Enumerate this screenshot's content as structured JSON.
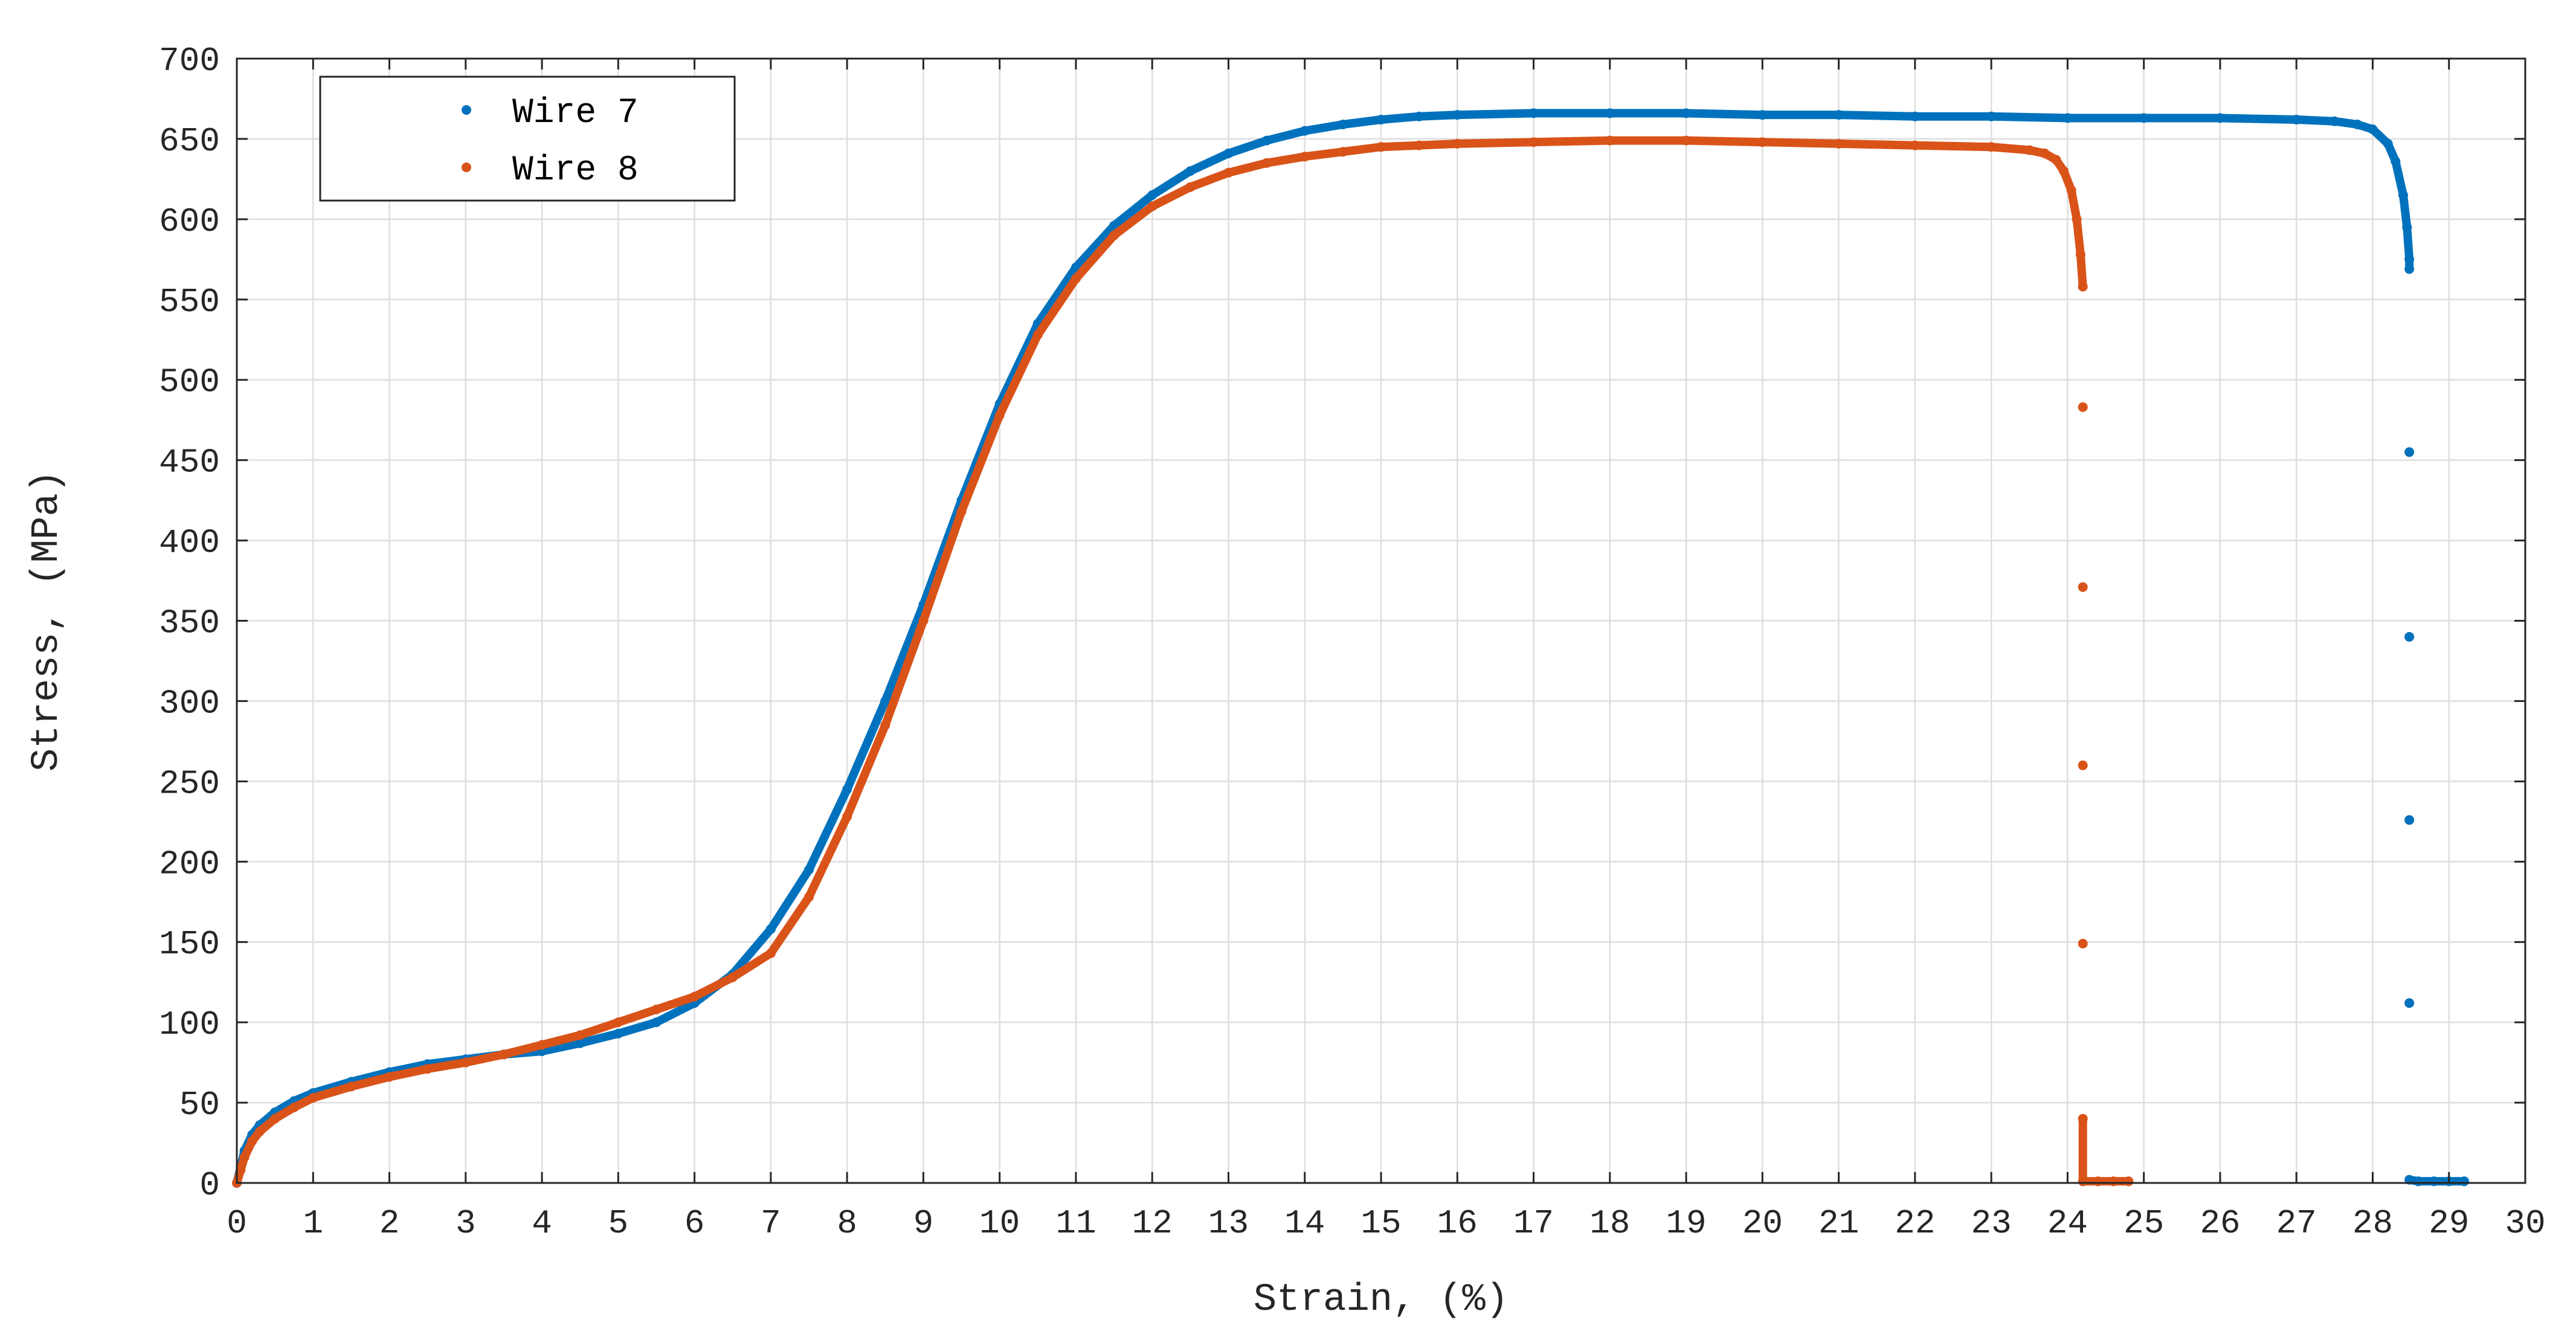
{
  "chart_data": {
    "type": "scatter",
    "title": "",
    "xlabel": "Strain, (%)",
    "ylabel": "Stress, (MPa)",
    "xlim": [
      0,
      30
    ],
    "ylim": [
      0,
      700
    ],
    "xticks": [
      0,
      1,
      2,
      3,
      4,
      5,
      6,
      7,
      8,
      9,
      10,
      11,
      12,
      13,
      14,
      15,
      16,
      17,
      18,
      19,
      20,
      21,
      22,
      23,
      24,
      25,
      26,
      27,
      28,
      29,
      30
    ],
    "yticks": [
      0,
      50,
      100,
      150,
      200,
      250,
      300,
      350,
      400,
      450,
      500,
      550,
      600,
      650,
      700
    ],
    "grid": true,
    "legend_position": "top-left",
    "series": [
      {
        "name": "Wire 7",
        "color": "#0072BD",
        "x": [
          0,
          0.05,
          0.1,
          0.2,
          0.3,
          0.5,
          0.75,
          1,
          1.5,
          2,
          2.5,
          3,
          3.5,
          4,
          4.5,
          5,
          5.5,
          6,
          6.5,
          7,
          7.5,
          8,
          8.5,
          9,
          9.5,
          10,
          10.5,
          11,
          11.5,
          12,
          12.5,
          13,
          13.5,
          14,
          14.5,
          15,
          15.5,
          16,
          17,
          18,
          19,
          20,
          21,
          22,
          23,
          24,
          25,
          26,
          27,
          27.5,
          27.8,
          28.0,
          28.2,
          28.3,
          28.4,
          28.45,
          28.48,
          28.48,
          28.48,
          28.48,
          28.48,
          28.48,
          28.48,
          28.6,
          28.8,
          29.0,
          29.2
        ],
        "y": [
          0,
          10,
          20,
          30,
          36,
          44,
          51,
          56,
          63,
          69,
          74,
          77,
          80,
          82,
          87,
          93,
          100,
          112,
          130,
          158,
          195,
          245,
          300,
          360,
          425,
          485,
          535,
          570,
          596,
          615,
          630,
          641,
          649,
          655,
          659,
          662,
          664,
          665,
          666,
          666,
          666,
          665,
          665,
          664,
          664,
          663,
          663,
          663,
          662,
          661,
          659,
          656,
          647,
          636,
          615,
          595,
          575,
          569,
          455,
          340,
          226,
          112,
          2,
          1,
          1,
          1,
          1
        ]
      },
      {
        "name": "Wire 8",
        "color": "#D95319",
        "x": [
          0,
          0.05,
          0.1,
          0.2,
          0.3,
          0.5,
          0.75,
          1,
          1.5,
          2,
          2.5,
          3,
          3.5,
          4,
          4.5,
          5,
          5.5,
          6,
          6.5,
          7,
          7.5,
          8,
          8.5,
          9,
          9.5,
          10,
          10.5,
          11,
          11.5,
          12,
          12.5,
          13,
          13.5,
          14,
          14.5,
          15,
          15.5,
          16,
          17,
          18,
          19,
          20,
          21,
          22,
          23,
          23.5,
          23.7,
          23.85,
          23.95,
          24.05,
          24.12,
          24.17,
          24.2,
          24.2,
          24.2,
          24.2,
          24.2,
          24.2,
          24.2,
          24.4,
          24.6,
          24.8
        ],
        "y": [
          0,
          8,
          16,
          26,
          32,
          40,
          47,
          53,
          60,
          66,
          71,
          75,
          80,
          86,
          92,
          100,
          108,
          116,
          128,
          143,
          178,
          228,
          285,
          350,
          418,
          478,
          528,
          563,
          590,
          608,
          620,
          629,
          635,
          639,
          642,
          645,
          646,
          647,
          648,
          649,
          649,
          648,
          647,
          646,
          645,
          643,
          641,
          637,
          630,
          618,
          600,
          578,
          558,
          483,
          371,
          260,
          149,
          40,
          1,
          1,
          1,
          1
        ]
      }
    ]
  }
}
